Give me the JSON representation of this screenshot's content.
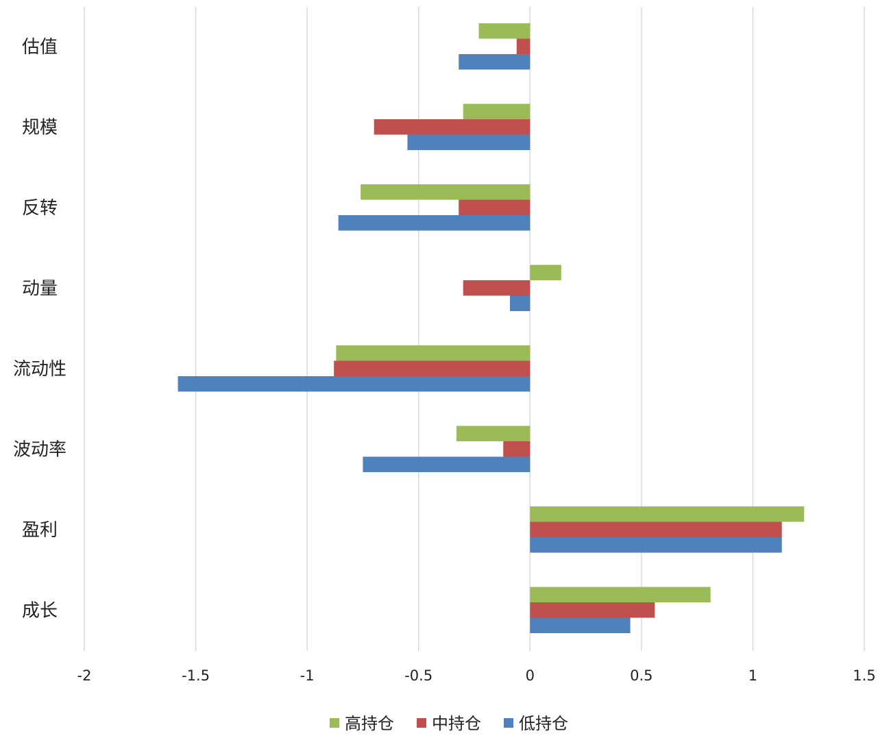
{
  "chart_data": {
    "type": "bar",
    "orientation": "horizontal",
    "title": "",
    "xlabel": "",
    "ylabel": "",
    "xlim": [
      -2,
      1.5
    ],
    "x_ticks": [
      -2,
      -1.5,
      -1,
      -0.5,
      0,
      0.5,
      1,
      1.5
    ],
    "x_tick_labels": [
      "-2",
      "-1.5",
      "-1",
      "-0.5",
      "0",
      "0.5",
      "1",
      "1.5"
    ],
    "grid": "vertical",
    "legend_position": "bottom",
    "categories": [
      "估值",
      "规模",
      "反转",
      "动量",
      "流动性",
      "波动率",
      "盈利",
      "成长"
    ],
    "series": [
      {
        "name": "高持仓",
        "color": "#9bbb59",
        "values": [
          -0.23,
          -0.3,
          -0.76,
          0.14,
          -0.87,
          -0.33,
          1.23,
          0.81
        ]
      },
      {
        "name": "中持仓",
        "color": "#c0504d",
        "values": [
          -0.06,
          -0.7,
          -0.32,
          -0.3,
          -0.88,
          -0.12,
          1.13,
          0.56
        ]
      },
      {
        "name": "低持仓",
        "color": "#4f81bd",
        "values": [
          -0.32,
          -0.55,
          -0.86,
          -0.09,
          -1.58,
          -0.75,
          1.13,
          0.45
        ]
      }
    ]
  }
}
